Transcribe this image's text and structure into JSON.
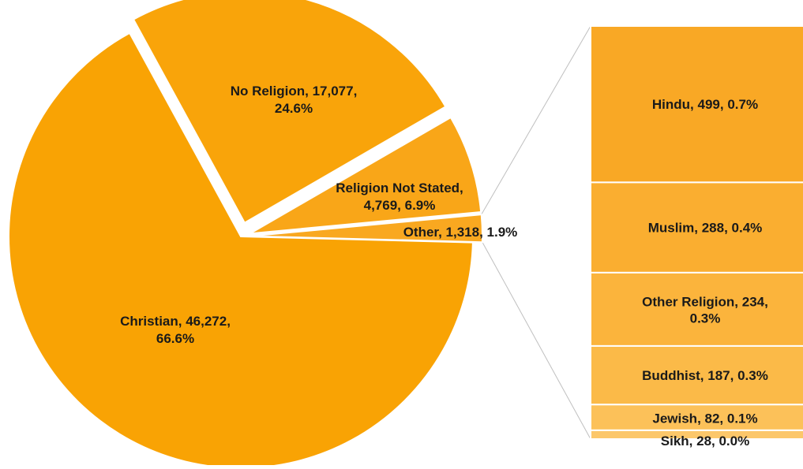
{
  "chart_data": {
    "type": "pie",
    "title": "",
    "subtitle": "",
    "pie": {
      "slices": [
        {
          "name": "Christian",
          "value": 46272,
          "percent": 66.6,
          "label_line1": "Christian, 46,272,",
          "label_line2": "66.6%",
          "color": "#F9A304"
        },
        {
          "name": "No Religion",
          "value": 17077,
          "percent": 24.6,
          "label_line1": "No Religion, 17,077,",
          "label_line2": "24.6%",
          "color": "#F9A40A"
        },
        {
          "name": "Religion Not Stated",
          "value": 4769,
          "percent": 6.9,
          "label_line1": "Religion Not Stated,",
          "label_line2": "4,769, 6.9%",
          "color": "#F9A618"
        },
        {
          "name": "Other",
          "value": 1318,
          "percent": 1.9,
          "label_line1": "Other, 1,318, 1.9%",
          "label_line2": "",
          "color": "#F9A820"
        }
      ]
    },
    "breakdown": {
      "type": "stacked-bar",
      "of": "Other",
      "segments": [
        {
          "name": "Hindu",
          "value": 499,
          "percent": 0.7,
          "label_line1": "Hindu, 499, 0.7%",
          "label_line2": "",
          "color": "#F9A825"
        },
        {
          "name": "Muslim",
          "value": 288,
          "percent": 0.4,
          "label_line1": "Muslim, 288, 0.4%",
          "label_line2": "",
          "color": "#FAAE30"
        },
        {
          "name": "Other Religion",
          "value": 234,
          "percent": 0.3,
          "label_line1": "Other Religion, 234,",
          "label_line2": "0.3%",
          "color": "#FBB43C"
        },
        {
          "name": "Buddhist",
          "value": 187,
          "percent": 0.3,
          "label_line1": "Buddhist, 187, 0.3%",
          "label_line2": "",
          "color": "#FBBA48"
        },
        {
          "name": "Jewish",
          "value": 82,
          "percent": 0.1,
          "label_line1": "Jewish, 82, 0.1%",
          "label_line2": "",
          "color": "#FCC159"
        },
        {
          "name": "Sikh",
          "value": 28,
          "percent": 0.0,
          "label_line1": "Sikh, 28, 0.0%",
          "label_line2": "",
          "color": "#FCC76A"
        }
      ]
    },
    "connector_color": "#BFBFBF"
  }
}
